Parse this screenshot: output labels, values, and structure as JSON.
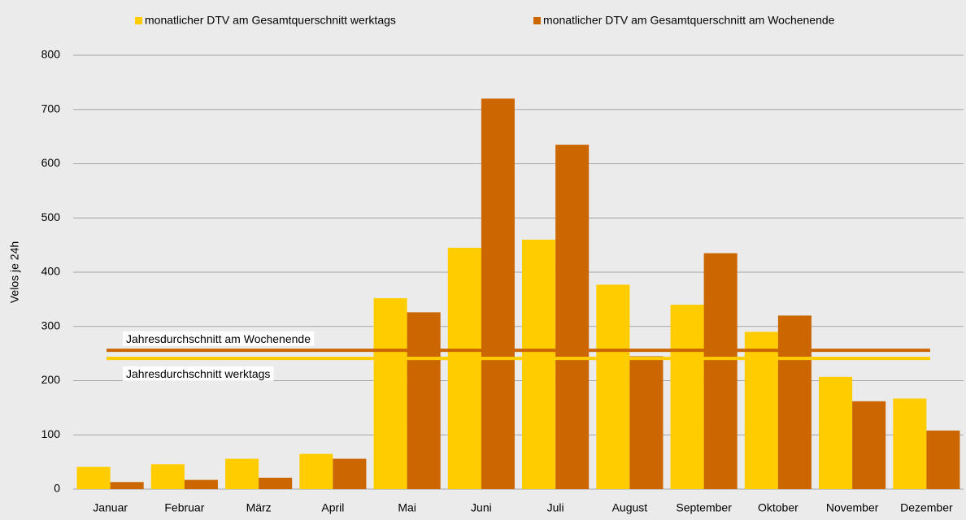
{
  "chart_data": {
    "type": "bar",
    "y_label": "Velos je 24h",
    "categories": [
      "Januar",
      "Februar",
      "März",
      "April",
      "Mai",
      "Juni",
      "Juli",
      "August",
      "September",
      "Oktober",
      "November",
      "Dezember"
    ],
    "series": [
      {
        "name": "monatlicher DTV am Gesamtquerschnitt werktags",
        "color": "#ffcc00",
        "values": [
          41,
          46,
          56,
          65,
          352,
          445,
          460,
          377,
          340,
          290,
          207,
          167
        ]
      },
      {
        "name": "monatlicher DTV am Gesamtquerschnitt am Wochenende",
        "color": "#cc6600",
        "values": [
          13,
          17,
          21,
          56,
          326,
          720,
          635,
          245,
          435,
          320,
          162,
          108
        ]
      }
    ],
    "reference_lines": [
      {
        "label": "Jahresdurchschnitt am Wochenende",
        "value": 256,
        "color": "#cc6600"
      },
      {
        "label": "Jahresdurchschnitt werktags",
        "value": 241,
        "color": "#ffcc00"
      }
    ],
    "ylim": [
      0,
      800
    ],
    "yticks": [
      0,
      100,
      200,
      300,
      400,
      500,
      600,
      700,
      800
    ],
    "grid": true,
    "legend": "top"
  }
}
